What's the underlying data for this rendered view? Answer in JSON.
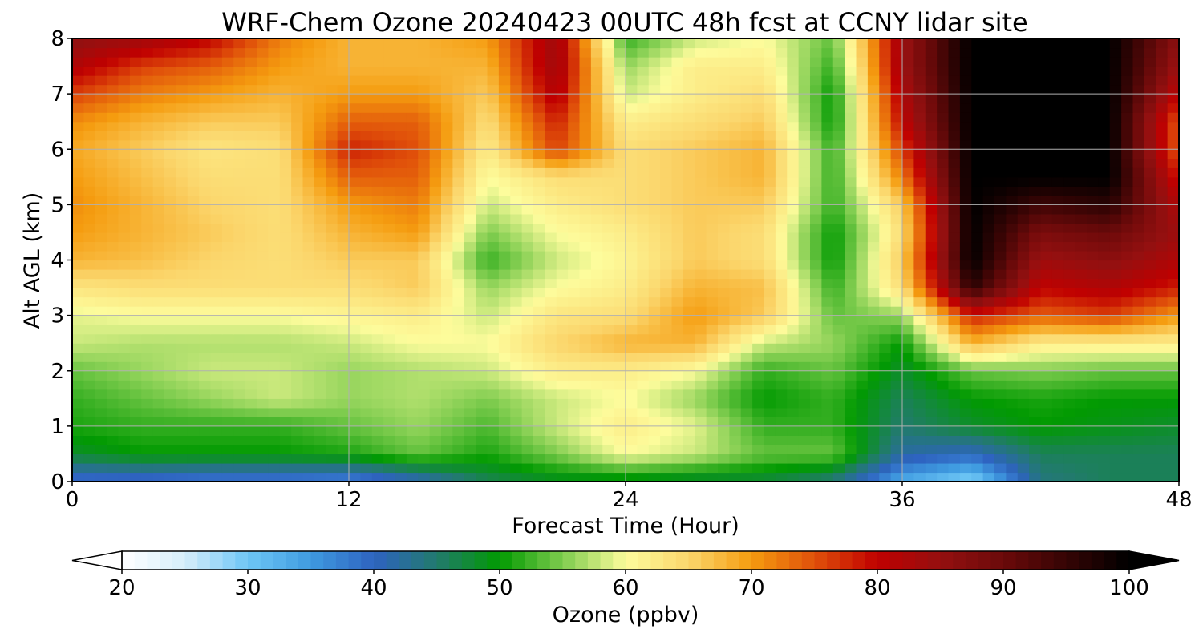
{
  "chart_data": {
    "type": "heatmap",
    "title": "WRF-Chem Ozone  20240423 00UTC 48h fcst at CCNY lidar site",
    "xlabel": "Forecast Time (Hour)",
    "ylabel": "Alt AGL (km)",
    "xlim": [
      0,
      48
    ],
    "ylim": [
      0,
      8
    ],
    "xticks": [
      0,
      12,
      24,
      36,
      48
    ],
    "yticks": [
      0,
      1,
      2,
      3,
      4,
      5,
      6,
      7,
      8
    ],
    "grid": true,
    "x": [
      0,
      3,
      6,
      9,
      12,
      15,
      18,
      21,
      24,
      27,
      30,
      33,
      36,
      39,
      42,
      45,
      48
    ],
    "y": [
      0,
      0.5,
      1,
      1.5,
      2,
      2.5,
      3,
      3.5,
      4,
      4.5,
      5,
      5.5,
      6,
      6.5,
      7,
      7.5,
      8
    ],
    "z": [
      [
        38,
        38,
        37,
        37,
        36,
        40,
        46,
        48,
        48,
        47,
        47,
        44,
        33,
        28,
        44,
        46,
        46
      ],
      [
        48,
        50,
        50,
        50,
        51,
        54,
        51,
        55,
        60,
        58,
        54,
        54,
        42,
        40,
        46,
        46,
        46
      ],
      [
        51,
        52,
        52,
        52,
        54,
        56,
        53,
        58,
        62,
        59,
        52,
        52,
        45,
        48,
        50,
        49,
        48
      ],
      [
        52,
        54,
        56,
        58,
        56,
        57,
        55,
        58,
        60,
        56,
        50,
        52,
        46,
        50,
        51,
        50,
        50
      ],
      [
        54,
        56,
        58,
        58,
        56,
        57,
        58,
        62,
        62,
        60,
        52,
        54,
        48,
        54,
        55,
        54,
        54
      ],
      [
        58,
        57,
        57,
        57,
        58,
        60,
        60,
        65,
        68,
        68,
        58,
        56,
        50,
        68,
        62,
        62,
        62
      ],
      [
        59,
        60,
        60,
        60,
        61,
        62,
        58,
        63,
        64,
        70,
        66,
        54,
        56,
        78,
        74,
        76,
        70
      ],
      [
        63,
        64,
        64,
        64,
        64,
        66,
        56,
        60,
        62,
        68,
        67,
        52,
        64,
        96,
        80,
        82,
        78
      ],
      [
        68,
        67,
        65,
        64,
        66,
        66,
        52,
        58,
        61,
        66,
        64,
        50,
        66,
        100,
        84,
        86,
        82
      ],
      [
        70,
        68,
        66,
        64,
        68,
        70,
        55,
        60,
        62,
        66,
        64,
        50,
        64,
        100,
        88,
        90,
        84
      ],
      [
        71,
        68,
        65,
        64,
        70,
        72,
        58,
        62,
        64,
        66,
        66,
        52,
        66,
        100,
        94,
        96,
        82
      ],
      [
        70,
        67,
        64,
        64,
        74,
        74,
        60,
        64,
        64,
        66,
        68,
        52,
        72,
        100,
        100,
        100,
        78
      ],
      [
        69,
        66,
        63,
        64,
        78,
        75,
        62,
        76,
        64,
        66,
        68,
        52,
        76,
        100,
        100,
        100,
        74
      ],
      [
        71,
        68,
        66,
        66,
        74,
        74,
        64,
        78,
        62,
        64,
        66,
        50,
        80,
        100,
        100,
        100,
        74
      ],
      [
        76,
        72,
        70,
        68,
        70,
        70,
        66,
        82,
        58,
        62,
        64,
        50,
        82,
        100,
        100,
        100,
        80
      ],
      [
        82,
        76,
        74,
        70,
        68,
        68,
        68,
        84,
        56,
        62,
        62,
        52,
        84,
        100,
        100,
        100,
        84
      ],
      [
        86,
        84,
        80,
        72,
        68,
        68,
        70,
        84,
        52,
        58,
        60,
        54,
        84,
        100,
        100,
        100,
        86
      ]
    ],
    "colorbar": {
      "label": "Ozone  (ppbv)",
      "range": [
        20,
        100
      ],
      "ticks": [
        20,
        30,
        40,
        50,
        60,
        70,
        80,
        90,
        100
      ],
      "extend": "both"
    },
    "colormap": [
      [
        20,
        "#ffffff"
      ],
      [
        25,
        "#d6eefa"
      ],
      [
        30,
        "#6ec6f5"
      ],
      [
        35,
        "#3f9be0"
      ],
      [
        40,
        "#2e63c0"
      ],
      [
        45,
        "#227a6e"
      ],
      [
        50,
        "#019a01"
      ],
      [
        55,
        "#7ecc4e"
      ],
      [
        60,
        "#fdfc9c"
      ],
      [
        65,
        "#fbd66c"
      ],
      [
        70,
        "#f59c0f"
      ],
      [
        75,
        "#e0500a"
      ],
      [
        80,
        "#c00000"
      ],
      [
        85,
        "#951010"
      ],
      [
        90,
        "#6b0a0a"
      ],
      [
        95,
        "#350404"
      ],
      [
        100,
        "#000000"
      ]
    ]
  }
}
